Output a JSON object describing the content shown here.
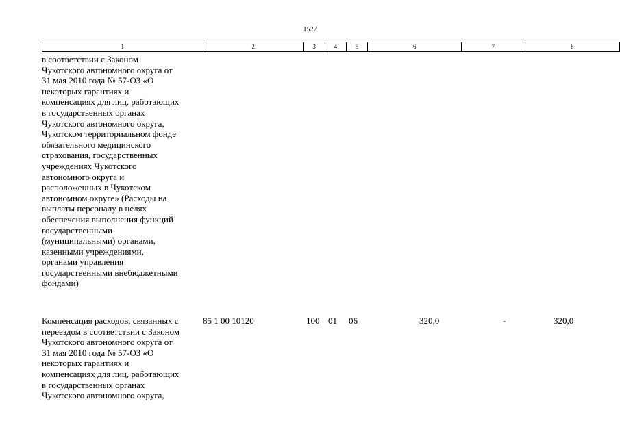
{
  "page_number": "1527",
  "header_columns": [
    "1",
    "2",
    "3",
    "4",
    "5",
    "6",
    "7",
    "8"
  ],
  "continued_text": "в соответствии с Законом\nЧукотского автономного округа от\n31 мая 2010 года № 57-ОЗ «О\nнекоторых гарантиях и\nкомпенсациях для лиц, работающих\nв государственных органах\nЧукотского автономного округа,\nЧукотском территориальном фонде\nобязательного медицинского\nстрахования, государственных\nучреждениях Чукотского\nавтономного округа и\nрасположенных в Чукотском\nавтономном округе» (Расходы на\nвыплаты персоналу в целях\nобеспечения выполнения функций\nгосударственными\n(муниципальными) органами,\nказенными учреждениями,\nорганами управления\nгосударственными внебюджетными\nфондами)",
  "row": {
    "description": "Компенсация расходов, связанных с\nпереездом в соответствии с Законом\nЧукотского автономного округа от\n31 мая 2010 года № 57-ОЗ «О\nнекоторых гарантиях и\nкомпенсациях для лиц, работающих\nв государственных органах\nЧукотского автономного округа,",
    "code": "85 1 00 10120",
    "col3": "100",
    "col4": "01",
    "col5": "06",
    "col6": "320,0",
    "col7": "-",
    "col8": "320,0"
  }
}
